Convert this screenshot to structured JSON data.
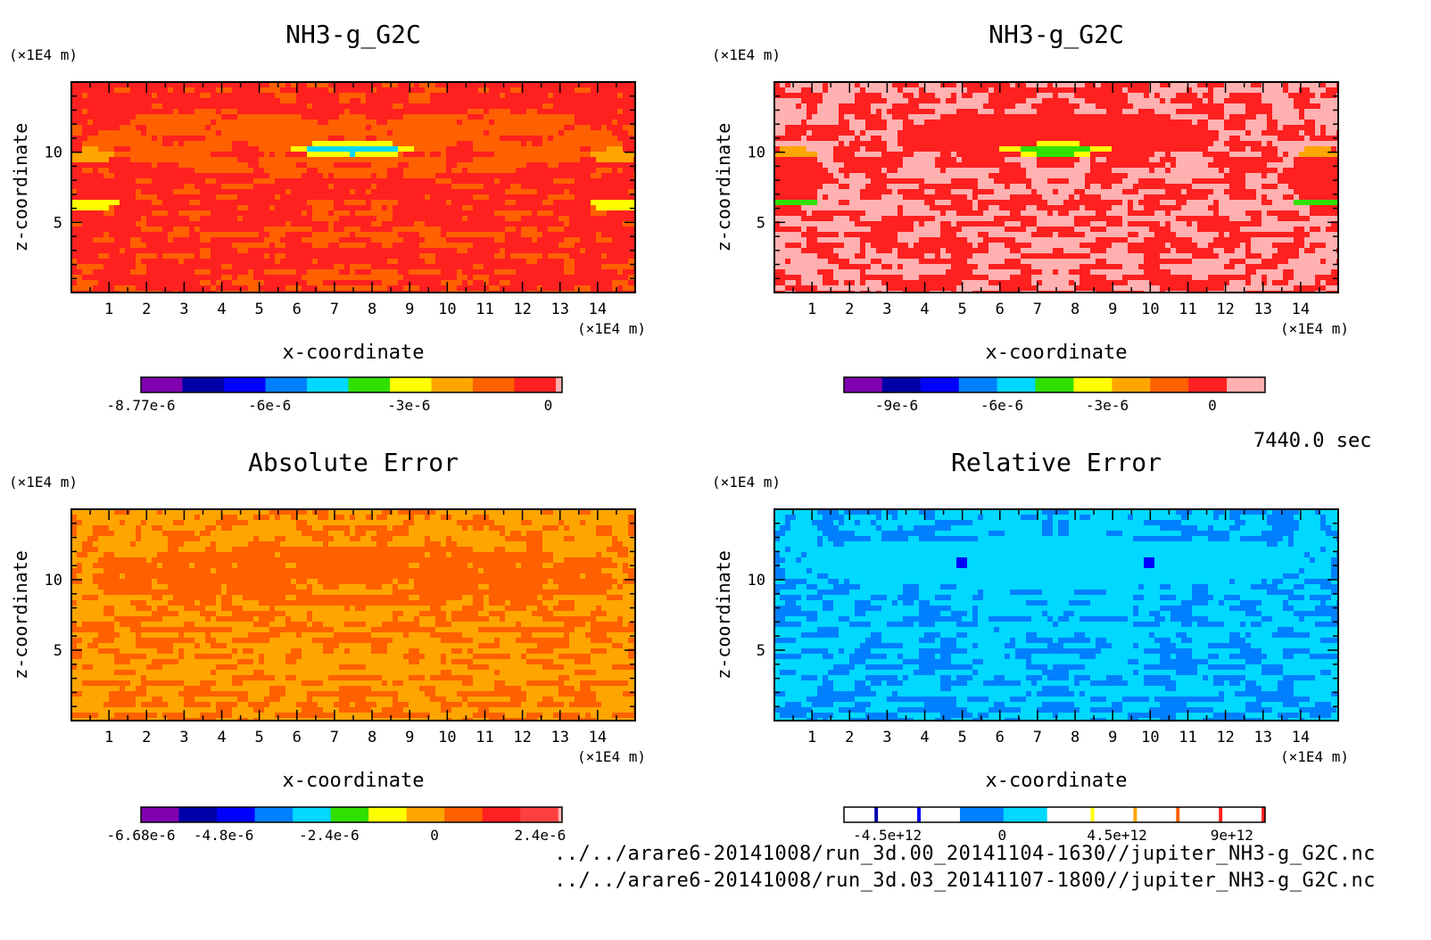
{
  "figure": {
    "time_label": "7440.0 sec",
    "footer_lines": [
      "../../arare6-20141008/run_3d.00_20141104-1630//jupiter_NH3-g_G2C.nc",
      "../../arare6-20141008/run_3d.03_20141107-1800//jupiter_NH3-g_G2C.nc"
    ]
  },
  "chart_data": [
    {
      "type": "heatmap",
      "title": "NH3-g_G2C",
      "xlabel": "x-coordinate",
      "ylabel": "z-coordinate",
      "x_unit": "(×1E4 m)",
      "y_unit": "(×1E4 m)",
      "xlim": [
        0,
        15
      ],
      "ylim": [
        0,
        15
      ],
      "x_ticks": [
        1,
        2,
        3,
        4,
        5,
        6,
        7,
        8,
        9,
        10,
        11,
        12,
        13,
        14
      ],
      "y_ticks": [
        5,
        10
      ],
      "pattern": "field_orange",
      "colorbar": {
        "colors": [
          "#8000b0",
          "#0000a8",
          "#0000ff",
          "#0080ff",
          "#00d8ff",
          "#30e000",
          "#ffff00",
          "#ffa500",
          "#ff6000",
          "#ff2020",
          "#ffb0b0"
        ],
        "weights": [
          1,
          1,
          1,
          1,
          1,
          1,
          1,
          1,
          1,
          1,
          0.15
        ],
        "vmin": -8.77e-06,
        "vmax": 3e-07,
        "tick_values": [
          -8.77e-06,
          -6e-06,
          -3e-06,
          0
        ],
        "tick_labels": [
          "-8.77e-6",
          "-6e-6",
          "-3e-6",
          "0"
        ]
      }
    },
    {
      "type": "heatmap",
      "title": "NH3-g_G2C",
      "xlabel": "x-coordinate",
      "ylabel": "z-coordinate",
      "x_unit": "(×1E4 m)",
      "y_unit": "(×1E4 m)",
      "xlim": [
        0,
        15
      ],
      "ylim": [
        0,
        15
      ],
      "x_ticks": [
        1,
        2,
        3,
        4,
        5,
        6,
        7,
        8,
        9,
        10,
        11,
        12,
        13,
        14
      ],
      "y_ticks": [
        5,
        10
      ],
      "pattern": "field_pink",
      "colorbar": {
        "colors": [
          "#8000b0",
          "#0000a8",
          "#0000ff",
          "#0080ff",
          "#00d8ff",
          "#30e000",
          "#ffff00",
          "#ffa500",
          "#ff6000",
          "#ff2020",
          "#ffb0b0"
        ],
        "weights": [
          1,
          1,
          1,
          1,
          1,
          1,
          1,
          1,
          1,
          1,
          1
        ],
        "vmin": -1.05e-05,
        "vmax": 1.5e-06,
        "tick_values": [
          -9e-06,
          -6e-06,
          -3e-06,
          0
        ],
        "tick_labels": [
          "-9e-6",
          "-6e-6",
          "-3e-6",
          "0"
        ]
      }
    },
    {
      "type": "heatmap",
      "title": "Absolute Error",
      "xlabel": "x-coordinate",
      "ylabel": "z-coordinate",
      "x_unit": "(×1E4 m)",
      "y_unit": "(×1E4 m)",
      "xlim": [
        0,
        15
      ],
      "ylim": [
        0,
        15
      ],
      "x_ticks": [
        1,
        2,
        3,
        4,
        5,
        6,
        7,
        8,
        9,
        10,
        11,
        12,
        13,
        14
      ],
      "y_ticks": [
        5,
        10
      ],
      "pattern": "abs_error",
      "colorbar": {
        "colors": [
          "#8000b0",
          "#0000a8",
          "#0000ff",
          "#0080ff",
          "#00d8ff",
          "#30e000",
          "#ffff00",
          "#ffa500",
          "#ff6000",
          "#ff2020",
          "#ff4040",
          "#ffb0b0"
        ],
        "weights": [
          1,
          1,
          1,
          1,
          1,
          1,
          1,
          1,
          1,
          1,
          1,
          0.1
        ],
        "vmin": -6.68e-06,
        "vmax": 2.9e-06,
        "tick_values": [
          -6.68e-06,
          -4.8e-06,
          -2.4e-06,
          0,
          2.4e-06
        ],
        "tick_labels": [
          "-6.68e-6",
          "-4.8e-6",
          "-2.4e-6",
          "0",
          "2.4e-6"
        ]
      }
    },
    {
      "type": "heatmap",
      "title": "Relative Error",
      "xlabel": "x-coordinate",
      "ylabel": "z-coordinate",
      "x_unit": "(×1E4 m)",
      "y_unit": "(×1E4 m)",
      "xlim": [
        0,
        15
      ],
      "ylim": [
        0,
        15
      ],
      "x_ticks": [
        1,
        2,
        3,
        4,
        5,
        6,
        7,
        8,
        9,
        10,
        11,
        12,
        13,
        14
      ],
      "y_ticks": [
        5,
        10
      ],
      "pattern": "rel_error",
      "colorbar": {
        "colors": [
          "#ffffff",
          "#0000a8",
          "#ffffff",
          "#0000ff",
          "#ffffff",
          "#0080ff",
          "#00d8ff",
          "#ffffff",
          "#ffff00",
          "#ffffff",
          "#ffa500",
          "#ffffff",
          "#ff6000",
          "#ffffff",
          "#ff2020",
          "#ffffff",
          "#ff2020"
        ],
        "weights": [
          0.7,
          0.08,
          0.9,
          0.08,
          0.9,
          1,
          1,
          1,
          0.08,
          0.9,
          0.08,
          0.9,
          0.08,
          0.9,
          0.08,
          0.9,
          0.08
        ],
        "vmin": -6200000000000.0,
        "vmax": 10300000000000.0,
        "tick_values": [
          -4500000000000.0,
          0,
          4500000000000.0,
          9000000000000.0
        ],
        "tick_labels": [
          "-4.5e+12",
          "0",
          "4.5e+12",
          "9e+12"
        ]
      }
    }
  ]
}
